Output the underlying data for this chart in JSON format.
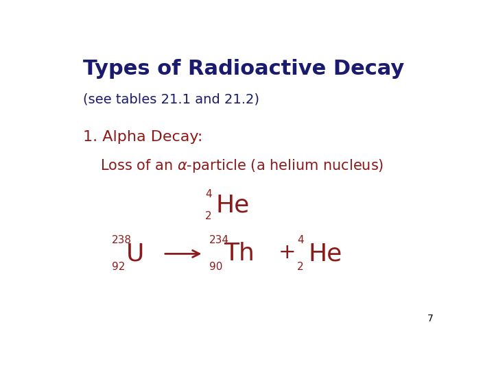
{
  "bg_color": "#ffffff",
  "title": "Types of Radioactive Decay",
  "subtitle": "(see tables 21.1 and 21.2)",
  "title_color": "#1a1a6e",
  "red_color": "#8b1a1a",
  "alpha_decay_label": "1. Alpha Decay:",
  "page_number": "7",
  "title_fontsize": 22,
  "subtitle_fontsize": 14,
  "alpha_label_fontsize": 16,
  "loss_fontsize": 15,
  "he_large_fontsize": 26,
  "he_small_fontsize": 11,
  "eq_large_fontsize": 26,
  "eq_small_fontsize": 11,
  "plus_fontsize": 22,
  "page_fontsize": 10
}
